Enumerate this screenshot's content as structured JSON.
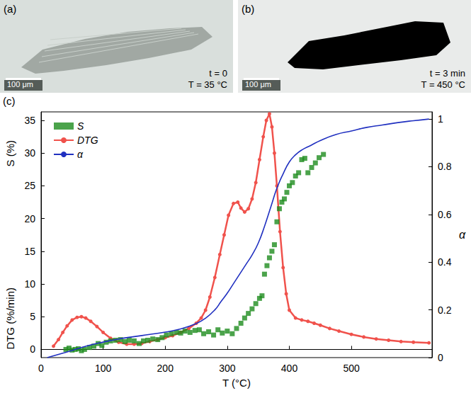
{
  "images": [
    {
      "panel": "(a)",
      "scale_bar": "100 μm",
      "time": "t = 0",
      "temperature": "T = 35 °C",
      "color": "#8e9690"
    },
    {
      "panel": "(b)",
      "scale_bar": "100 μm",
      "time": "t = 3 min",
      "temperature": "T = 450 °C",
      "color": "#000000"
    }
  ],
  "chart_data": {
    "type": "line",
    "panel_label": "(c)",
    "xlabel": "T (°C)",
    "ylabels": [
      "S (%)",
      "DTG (%/min)"
    ],
    "y2label": "α",
    "xlim": [
      0,
      630
    ],
    "xticks": [
      0,
      100,
      200,
      300,
      400,
      500
    ],
    "ylim": [
      -1.25,
      36.3
    ],
    "yticks": [
      0,
      5,
      10,
      15,
      20,
      25,
      30,
      35
    ],
    "y2lim": [
      0,
      1.03
    ],
    "y2ticks": [
      0,
      0.2,
      0.4,
      0.6,
      0.8,
      1
    ],
    "grid": false,
    "legend": "top-left",
    "series": [
      {
        "name": "S",
        "type": "scatter",
        "marker": "square",
        "color": "#1e8c1e",
        "axis": "y",
        "x": [
          40,
          45,
          50,
          55,
          60,
          65,
          70,
          78,
          85,
          92,
          98,
          105,
          112,
          120,
          128,
          135,
          142,
          150,
          158,
          165,
          172,
          180,
          188,
          195,
          202,
          210,
          218,
          225,
          232,
          240,
          248,
          255,
          262,
          270,
          278,
          285,
          292,
          300,
          308,
          315,
          322,
          328,
          334,
          340,
          346,
          352,
          356,
          360,
          364,
          368,
          372,
          376,
          380,
          384,
          388,
          392,
          396,
          400,
          405,
          410,
          415,
          420,
          425,
          430,
          436,
          442,
          448,
          455
        ],
        "values": [
          0,
          0.2,
          -0.1,
          0,
          0.1,
          -0.2,
          0,
          0.3,
          0.5,
          0.9,
          0.6,
          1.1,
          1.3,
          1.4,
          1.5,
          1.2,
          1.4,
          1.3,
          0.9,
          1.3,
          1.4,
          1.6,
          1.5,
          1.8,
          2.2,
          2.4,
          2.6,
          2.5,
          2.8,
          2.6,
          2.9,
          3.0,
          2.4,
          2.7,
          2.2,
          3.0,
          2.5,
          2.8,
          2.4,
          3.2,
          4.0,
          4.8,
          5.5,
          6.2,
          7.0,
          7.8,
          8.2,
          11.5,
          12.8,
          14,
          15,
          16,
          19.5,
          21.5,
          22.5,
          23,
          24,
          25,
          25.5,
          26.5,
          27,
          29,
          29.2,
          27,
          27.8,
          28.5,
          29.3,
          29.8
        ]
      },
      {
        "name": "DTG",
        "type": "line",
        "marker": "circle",
        "color": "#f0524c",
        "axis": "y",
        "x": [
          20,
          28,
          35,
          42,
          50,
          58,
          65,
          72,
          80,
          90,
          100,
          112,
          125,
          138,
          150,
          162,
          175,
          188,
          200,
          212,
          225,
          238,
          250,
          258,
          265,
          272,
          280,
          288,
          295,
          302,
          310,
          317,
          322,
          328,
          334,
          340,
          346,
          352,
          358,
          363,
          368,
          372,
          376,
          380,
          385,
          390,
          395,
          400,
          410,
          420,
          430,
          440,
          450,
          465,
          480,
          500,
          520,
          540,
          560,
          580,
          600,
          625
        ],
        "values": [
          0.5,
          1.5,
          2.6,
          3.6,
          4.5,
          4.9,
          5.0,
          4.8,
          4.3,
          3.5,
          2.6,
          1.7,
          1.1,
          0.8,
          0.8,
          0.9,
          1.2,
          1.5,
          1.8,
          2.1,
          2.6,
          3.2,
          4.0,
          4.8,
          6.0,
          8.0,
          11.0,
          14.5,
          17.5,
          20.5,
          22.3,
          22.5,
          21.6,
          21.0,
          21.5,
          23.0,
          25.5,
          29.0,
          32.5,
          35.0,
          36.0,
          34.0,
          30.0,
          25.0,
          18.0,
          12.5,
          8.5,
          6.0,
          4.8,
          4.5,
          4.3,
          4.0,
          3.7,
          3.2,
          2.8,
          2.3,
          1.9,
          1.6,
          1.4,
          1.2,
          1.1,
          1.0
        ]
      },
      {
        "name": "α",
        "type": "line",
        "marker": "none",
        "color": "#2030c0",
        "axis": "y2",
        "x": [
          10,
          30,
          50,
          75,
          100,
          125,
          150,
          175,
          200,
          225,
          250,
          265,
          280,
          290,
          300,
          310,
          320,
          330,
          340,
          350,
          360,
          370,
          380,
          390,
          400,
          410,
          420,
          435,
          450,
          475,
          500,
          525,
          550,
          575,
          600,
          625
        ],
        "values": [
          0,
          0.015,
          0.03,
          0.05,
          0.065,
          0.078,
          0.088,
          0.097,
          0.107,
          0.12,
          0.143,
          0.165,
          0.2,
          0.235,
          0.27,
          0.31,
          0.35,
          0.39,
          0.43,
          0.48,
          0.55,
          0.63,
          0.71,
          0.77,
          0.82,
          0.85,
          0.87,
          0.89,
          0.91,
          0.935,
          0.95,
          0.965,
          0.975,
          0.985,
          0.993,
          1.0
        ]
      }
    ]
  }
}
